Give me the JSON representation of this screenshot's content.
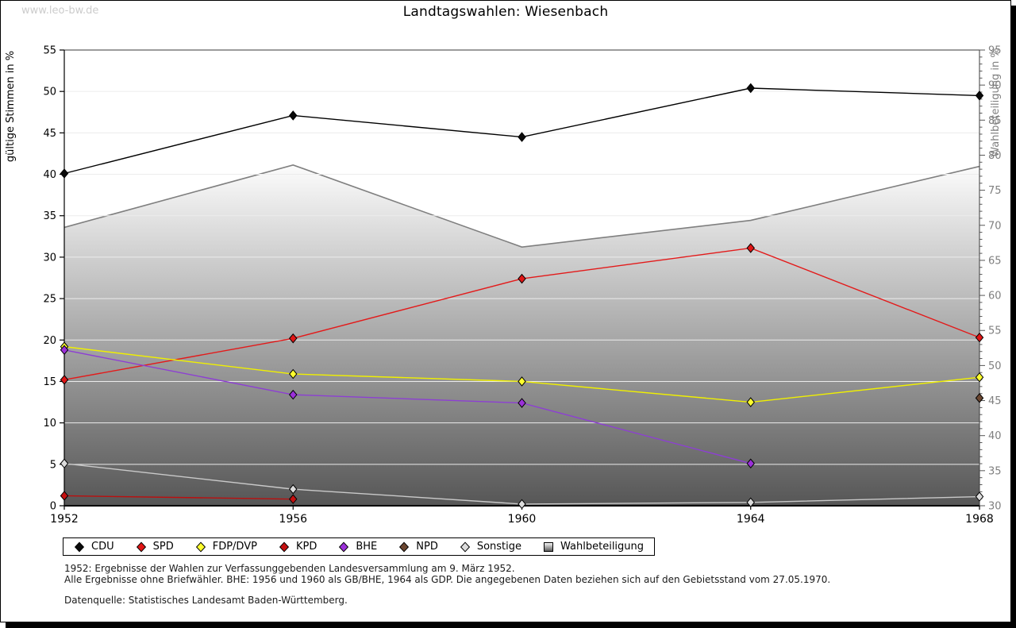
{
  "page": {
    "watermark": "www.leo-bw.de",
    "title": "Landtagswahlen: Wiesenbach"
  },
  "chart_data": {
    "type": "line",
    "title": "Landtagswahlen: Wiesenbach",
    "x": [
      1952,
      1956,
      1960,
      1964,
      1968
    ],
    "left_axis": {
      "label": "gültige Stimmen in %",
      "min": 0,
      "max": 55,
      "tick_step": 5
    },
    "right_axis": {
      "label": "Wahlbeteiligung in %",
      "min": 30,
      "max": 95,
      "tick_step": 5,
      "minor_tick_step": 1
    },
    "grid": true,
    "legend_position": "bottom",
    "area_series": {
      "name": "Wahlbeteiligung",
      "axis": "right",
      "values": [
        69.7,
        78.6,
        66.9,
        70.7,
        78.4
      ],
      "fill_top": "#fcfcfc",
      "fill_bottom": "#565656",
      "edge_color": "#7f7f7f"
    },
    "series": [
      {
        "name": "CDU",
        "color": "#000000",
        "marker_fill": "#0a0a0a",
        "values": [
          40.1,
          47.1,
          44.5,
          50.4,
          49.5
        ]
      },
      {
        "name": "SPD",
        "color": "#e31a1a",
        "marker_fill": "#e01515",
        "values": [
          15.2,
          20.2,
          27.4,
          31.1,
          20.3
        ]
      },
      {
        "name": "FDP/DVP",
        "color": "#f0f000",
        "marker_fill": "#ffff2e",
        "values": [
          19.2,
          15.9,
          15.0,
          12.5,
          15.5
        ]
      },
      {
        "name": "KPD",
        "color": "#bb0f0f",
        "marker_fill": "#c41111",
        "values": [
          1.2,
          0.8,
          null,
          null,
          null
        ]
      },
      {
        "name": "BHE",
        "color": "#8d3fd3",
        "marker_fill": "#9b30d9",
        "values": [
          18.8,
          13.4,
          12.4,
          5.1,
          null
        ]
      },
      {
        "name": "NPD",
        "color": "#6b4630",
        "marker_fill": "#6b4630",
        "values": [
          null,
          null,
          null,
          null,
          13.0
        ]
      },
      {
        "name": "Sonstige",
        "color": "#c9c9c9",
        "marker_fill": "#dcdcdc",
        "values": [
          5.1,
          2.0,
          0.2,
          0.4,
          1.1
        ]
      }
    ]
  },
  "footnotes": {
    "line1": "1952: Ergebnisse der Wahlen zur Verfassunggebenden Landesversammlung am 9. März 1952.",
    "line2": "Alle Ergebnisse ohne Briefwähler. BHE: 1956 und 1960 als GB/BHE, 1964 als GDP. Die angegebenen Daten beziehen sich auf den Gebietsstand vom 27.05.1970.",
    "source": "Datenquelle: Statistisches Landesamt Baden-Württemberg."
  }
}
